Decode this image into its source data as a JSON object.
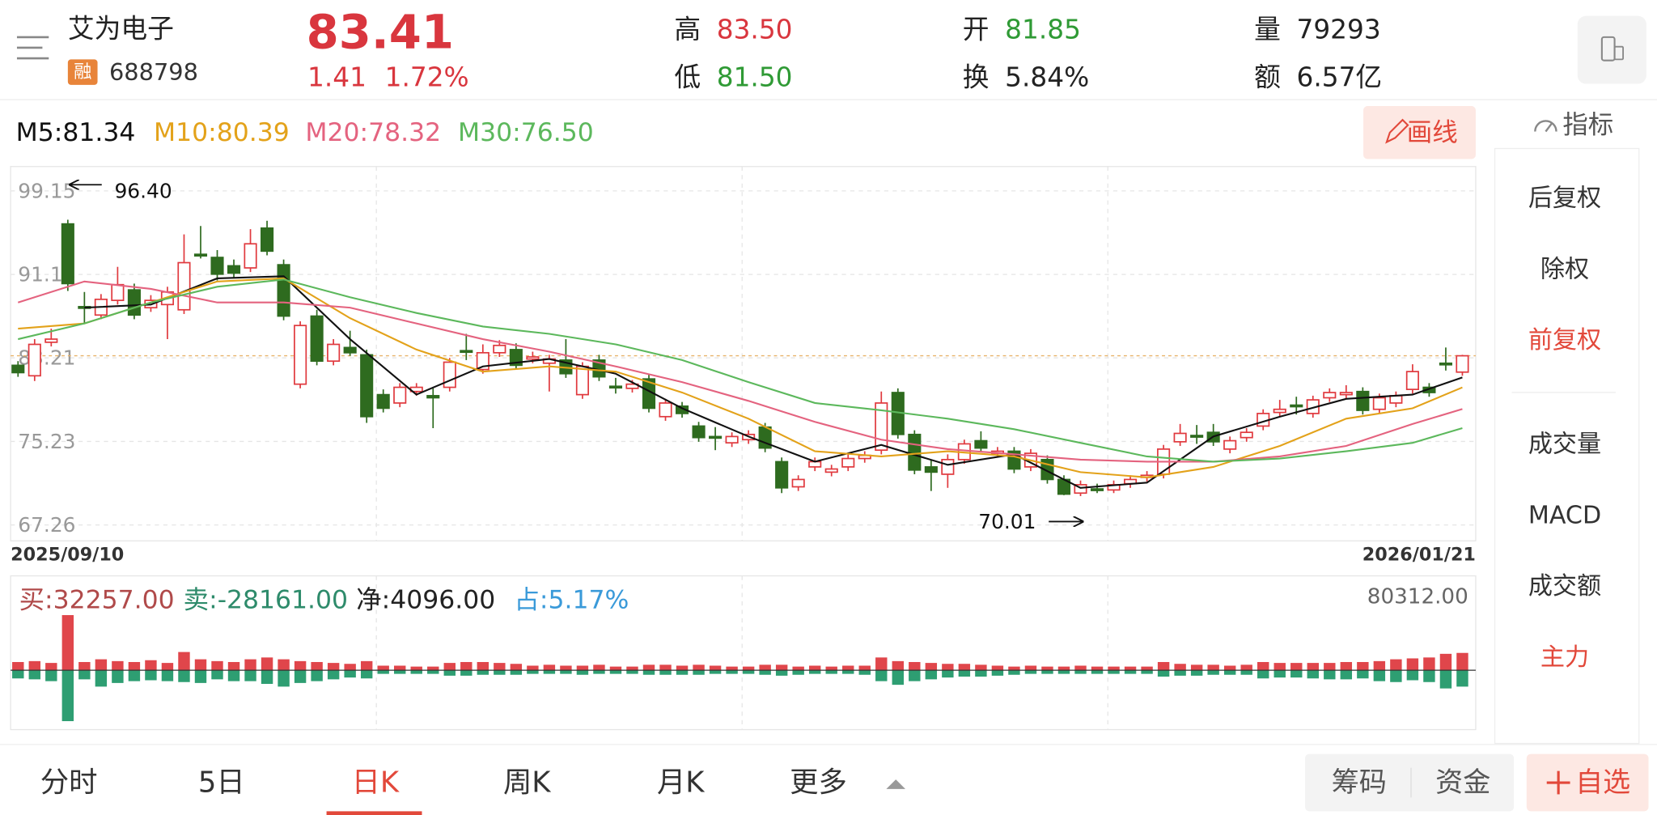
{
  "header": {
    "name": "艾为电子",
    "tag": "融",
    "code": "688798",
    "price": "83.41",
    "change": "1.41",
    "change_pct": "1.72%",
    "stats": [
      {
        "label": "高",
        "value": "83.50"
      },
      {
        "label": "低",
        "value": "81.50"
      },
      {
        "label": "开",
        "value": "81.85"
      },
      {
        "label": "换",
        "value": "5.84%"
      },
      {
        "label": "量",
        "value": "79293"
      },
      {
        "label": "额",
        "value": "6.57亿"
      }
    ]
  },
  "draw_button": "画线",
  "sidebar": {
    "title": "指标",
    "items": [
      "后复权",
      "除权",
      "前复权",
      "成交量",
      "MACD",
      "成交额",
      "主力"
    ]
  },
  "tabs": [
    "分时",
    "5日",
    "日K",
    "周K",
    "月K",
    "更多"
  ],
  "buttons": [
    "筹码",
    "资金",
    "自选"
  ],
  "chart_data": [
    {
      "type": "candlestick",
      "up_color": "#e0393e",
      "down_color": "#2e6b1f",
      "x_labels": [
        "2025/09/10",
        "2026/01/21"
      ],
      "ylim": [
        65.74,
        101.48
      ],
      "yticks": [
        99.15,
        91.18,
        83.21,
        75.23,
        67.26
      ],
      "grid": true,
      "candles": [
        [
          82.5,
          82.9,
          81.4,
          81.8
        ],
        [
          81.5,
          85.0,
          81.0,
          84.5
        ],
        [
          84.7,
          86.0,
          84.3,
          85.0
        ],
        [
          96.0,
          96.4,
          89.6,
          90.3
        ],
        [
          88.1,
          89.5,
          86.5,
          88.0
        ],
        [
          87.3,
          89.3,
          86.9,
          88.8
        ],
        [
          88.7,
          91.9,
          88.3,
          90.2
        ],
        [
          89.7,
          90.3,
          86.9,
          87.3
        ],
        [
          88.0,
          89.2,
          87.6,
          88.7
        ],
        [
          88.3,
          90.0,
          85.0,
          89.5
        ],
        [
          87.8,
          95.0,
          87.4,
          92.3
        ],
        [
          93.1,
          95.8,
          92.7,
          93.0
        ],
        [
          92.8,
          93.5,
          90.6,
          91.2
        ],
        [
          92.0,
          92.6,
          90.9,
          91.3
        ],
        [
          91.8,
          95.5,
          91.4,
          94.1
        ],
        [
          95.6,
          96.3,
          93.0,
          93.4
        ],
        [
          92.1,
          92.6,
          86.8,
          87.2
        ],
        [
          80.7,
          86.7,
          80.3,
          86.3
        ],
        [
          87.2,
          87.8,
          82.5,
          82.9
        ],
        [
          82.9,
          85.0,
          82.5,
          84.5
        ],
        [
          84.2,
          85.8,
          83.4,
          83.7
        ],
        [
          83.5,
          84.0,
          77.0,
          77.6
        ],
        [
          79.7,
          80.2,
          78.0,
          78.4
        ],
        [
          78.9,
          80.8,
          78.5,
          80.4
        ],
        [
          80.0,
          80.8,
          79.6,
          80.4
        ],
        [
          79.6,
          80.3,
          76.5,
          79.4
        ],
        [
          80.4,
          83.2,
          80.0,
          82.8
        ],
        [
          83.9,
          85.5,
          83.0,
          83.8
        ],
        [
          82.1,
          84.5,
          81.7,
          83.7
        ],
        [
          83.7,
          84.9,
          83.3,
          84.4
        ],
        [
          84.0,
          84.6,
          82.1,
          82.5
        ],
        [
          83.1,
          83.8,
          82.7,
          83.3
        ],
        [
          82.7,
          83.5,
          80.0,
          83.1
        ],
        [
          83.0,
          85.0,
          81.3,
          81.7
        ],
        [
          79.7,
          82.8,
          79.3,
          82.4
        ],
        [
          83.0,
          83.5,
          81.0,
          81.4
        ],
        [
          80.5,
          81.3,
          79.8,
          80.4
        ],
        [
          80.3,
          81.1,
          79.9,
          80.7
        ],
        [
          81.2,
          81.6,
          78.0,
          78.4
        ],
        [
          77.6,
          79.3,
          77.2,
          78.9
        ],
        [
          78.6,
          79.0,
          77.5,
          77.9
        ],
        [
          76.7,
          77.1,
          75.2,
          75.6
        ],
        [
          75.7,
          76.6,
          74.4,
          75.6
        ],
        [
          75.1,
          76.1,
          74.7,
          75.7
        ],
        [
          75.4,
          76.3,
          75.0,
          75.9
        ],
        [
          76.6,
          77.0,
          74.2,
          74.6
        ],
        [
          73.3,
          73.7,
          70.3,
          70.8
        ],
        [
          70.9,
          72.0,
          70.5,
          71.6
        ],
        [
          72.8,
          73.7,
          72.4,
          73.3
        ],
        [
          72.3,
          73.0,
          71.9,
          72.6
        ],
        [
          72.8,
          74.0,
          72.4,
          73.6
        ],
        [
          73.6,
          74.3,
          73.2,
          73.9
        ],
        [
          74.4,
          80.0,
          74.0,
          78.9
        ],
        [
          79.9,
          80.3,
          75.5,
          75.9
        ],
        [
          75.9,
          76.3,
          72.1,
          72.5
        ],
        [
          72.8,
          73.5,
          70.5,
          72.3
        ],
        [
          72.1,
          74.0,
          70.8,
          73.5
        ],
        [
          73.5,
          75.4,
          73.1,
          75.0
        ],
        [
          75.3,
          76.2,
          74.2,
          74.6
        ],
        [
          74.1,
          74.7,
          73.7,
          74.3
        ],
        [
          74.3,
          74.7,
          72.2,
          72.6
        ],
        [
          72.8,
          74.5,
          72.4,
          74.1
        ],
        [
          73.5,
          73.9,
          71.2,
          71.6
        ],
        [
          71.6,
          72.0,
          70.1,
          70.2
        ],
        [
          70.3,
          71.5,
          70.01,
          71.1
        ],
        [
          70.7,
          71.2,
          70.3,
          70.6
        ],
        [
          70.6,
          71.5,
          70.3,
          71.1
        ],
        [
          71.2,
          72.0,
          70.8,
          71.6
        ],
        [
          71.8,
          72.4,
          71.4,
          72.0
        ],
        [
          72.1,
          74.9,
          71.7,
          74.5
        ],
        [
          75.2,
          76.9,
          74.8,
          76.0
        ],
        [
          75.8,
          76.8,
          75.0,
          75.7
        ],
        [
          76.1,
          76.9,
          74.8,
          75.2
        ],
        [
          74.5,
          75.7,
          74.1,
          75.3
        ],
        [
          75.6,
          76.5,
          75.2,
          76.1
        ],
        [
          76.7,
          78.3,
          76.3,
          77.9
        ],
        [
          78.0,
          79.2,
          77.6,
          78.3
        ],
        [
          78.7,
          79.5,
          77.8,
          78.6
        ],
        [
          77.9,
          79.6,
          77.5,
          79.2
        ],
        [
          79.4,
          80.3,
          79.0,
          79.9
        ],
        [
          79.7,
          80.6,
          79.3,
          79.9
        ],
        [
          80.0,
          80.4,
          77.8,
          78.2
        ],
        [
          78.3,
          79.8,
          77.9,
          79.4
        ],
        [
          78.9,
          80.0,
          78.5,
          79.6
        ],
        [
          80.2,
          82.6,
          79.8,
          81.9
        ],
        [
          80.4,
          80.8,
          79.5,
          79.9
        ],
        [
          82.7,
          84.2,
          82.0,
          82.6
        ],
        [
          81.85,
          83.5,
          81.5,
          83.41
        ]
      ],
      "ma_x": [
        0,
        4,
        8,
        12,
        16,
        20,
        24,
        28,
        32,
        36,
        40,
        44,
        48,
        52,
        56,
        60,
        64,
        68,
        72,
        76,
        80,
        84,
        87
      ],
      "series": [
        {
          "name": "M5:81.34",
          "color": "#111111",
          "values": [
            null,
            88.0,
            88.3,
            90.8,
            91.0,
            85.0,
            79.7,
            82.4,
            83.1,
            81.7,
            78.4,
            75.7,
            73.3,
            74.9,
            73.0,
            74.0,
            70.8,
            71.3,
            75.7,
            77.6,
            79.3,
            79.7,
            81.34
          ]
        },
        {
          "name": "M10:80.39",
          "color": "#e3a21a",
          "values": [
            86.0,
            86.5,
            88.5,
            90.5,
            90.8,
            87.0,
            84.0,
            81.9,
            82.4,
            81.9,
            79.9,
            77.4,
            74.3,
            73.8,
            74.3,
            73.8,
            72.3,
            71.8,
            72.8,
            74.8,
            77.4,
            78.4,
            80.39
          ]
        },
        {
          "name": "M20:78.32",
          "color": "#e4637f",
          "values": [
            88.5,
            90.5,
            89.8,
            88.5,
            88.5,
            88.0,
            86.5,
            85.0,
            83.8,
            82.4,
            80.9,
            79.1,
            77.1,
            75.4,
            74.5,
            74.0,
            73.5,
            73.3,
            73.3,
            73.8,
            74.8,
            76.9,
            78.32
          ]
        },
        {
          "name": "M30:76.50",
          "color": "#5cb85c",
          "values": [
            85.0,
            86.5,
            88.5,
            90.0,
            90.7,
            89.0,
            87.5,
            86.2,
            85.5,
            84.5,
            83.0,
            80.9,
            78.9,
            78.2,
            77.4,
            76.4,
            75.1,
            73.8,
            73.3,
            73.6,
            74.3,
            75.1,
            76.5
          ]
        }
      ],
      "annotations": [
        {
          "value": 96.4,
          "label": "96.40"
        },
        {
          "value": 70.01,
          "label": "70.01"
        }
      ]
    },
    {
      "type": "bar",
      "legend": [
        {
          "text": "买:32257.00",
          "color": "#b04a4a"
        },
        {
          "text": "卖:-28161.00",
          "color": "#2e8b6b"
        },
        {
          "text": "净:4096.00",
          "color": "#222222"
        },
        {
          "text": "占:5.17%",
          "color": "#3a9ad9"
        }
      ],
      "ylim": [
        -65200,
        103600
      ],
      "yticks": [
        {
          "value": 80312,
          "label": "80312.00"
        }
      ],
      "series": [
        {
          "color": "#e0464b",
          "values": [
            9000,
            10000,
            8000,
            60500,
            9000,
            12000,
            10000,
            9000,
            11000,
            8000,
            20000,
            12000,
            10000,
            9000,
            12000,
            14000,
            12000,
            10000,
            9000,
            8000,
            7000,
            10000,
            5000,
            5000,
            4000,
            4000,
            8000,
            9000,
            9000,
            8000,
            7000,
            5000,
            6000,
            5000,
            5000,
            6000,
            4000,
            4000,
            6000,
            6000,
            5000,
            6000,
            5000,
            4000,
            4000,
            6000,
            6000,
            4000,
            5000,
            4000,
            5000,
            5000,
            14000,
            10000,
            9000,
            8000,
            7000,
            7000,
            6000,
            5000,
            4000,
            5000,
            4000,
            4000,
            5000,
            4000,
            4000,
            4000,
            4000,
            9000,
            7000,
            6000,
            6000,
            5000,
            6000,
            9000,
            8000,
            8000,
            8000,
            8000,
            9000,
            9000,
            10000,
            12000,
            13000,
            14000,
            18000,
            19000
          ]
        },
        {
          "color": "#2e9e72",
          "values": [
            -9000,
            -10000,
            -12000,
            -55900,
            -10000,
            -18000,
            -14000,
            -12000,
            -11000,
            -12000,
            -13000,
            -14000,
            -10000,
            -12000,
            -12000,
            -15000,
            -18000,
            -14000,
            -12000,
            -10000,
            -8000,
            -9000,
            -4000,
            -4000,
            -4000,
            -4000,
            -6000,
            -6000,
            -5000,
            -5000,
            -5000,
            -4000,
            -4000,
            -4000,
            -5000,
            -4000,
            -4000,
            -4000,
            -5000,
            -5000,
            -5000,
            -5000,
            -4000,
            -4000,
            -4000,
            -5000,
            -6000,
            -5000,
            -4000,
            -4000,
            -4000,
            -5000,
            -12000,
            -16000,
            -12000,
            -10000,
            -8000,
            -7000,
            -7000,
            -6000,
            -5000,
            -4000,
            -4000,
            -4000,
            -4000,
            -4000,
            -4000,
            -4000,
            -4000,
            -7000,
            -6000,
            -6000,
            -5000,
            -5000,
            -5000,
            -9000,
            -8000,
            -8000,
            -9000,
            -10000,
            -10000,
            -9000,
            -12000,
            -13000,
            -11000,
            -13000,
            -20000,
            -18000
          ]
        }
      ]
    }
  ]
}
